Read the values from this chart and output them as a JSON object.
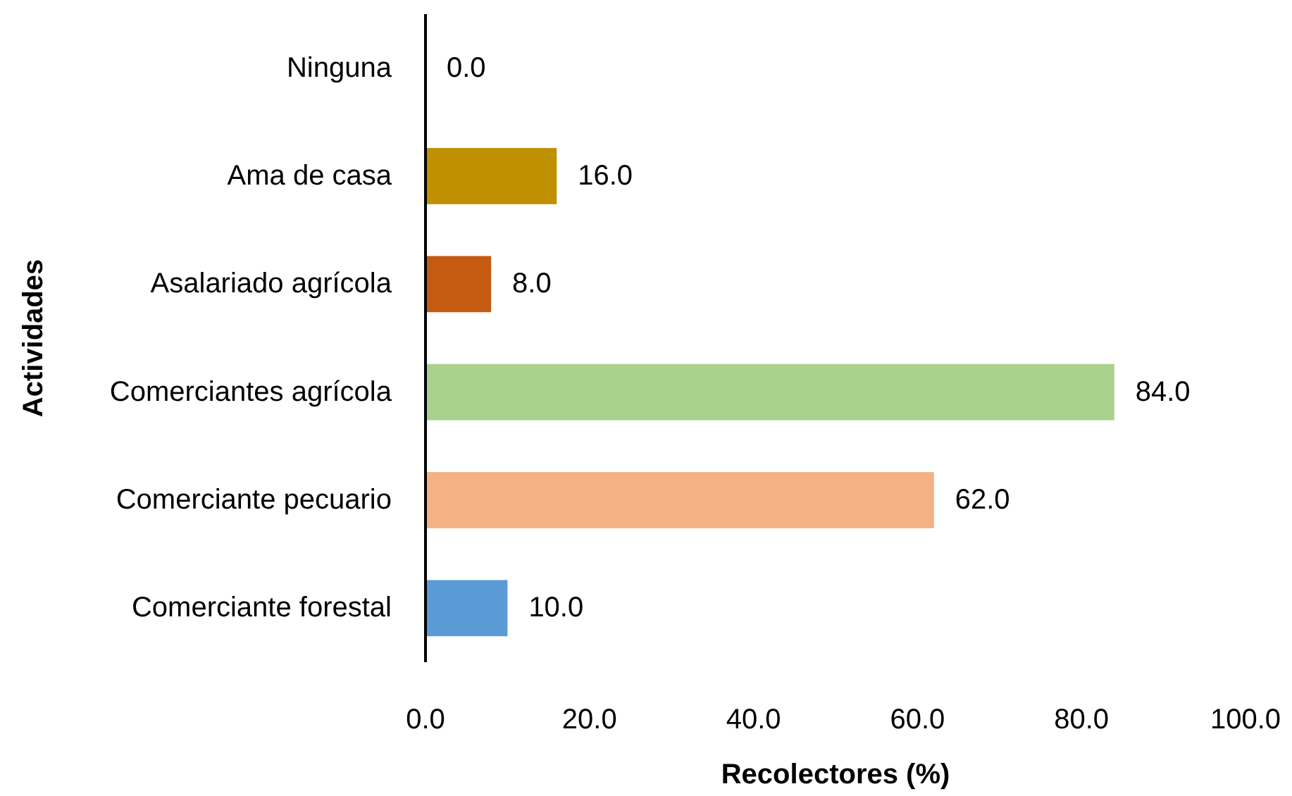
{
  "chart_data": {
    "type": "bar",
    "orientation": "horizontal",
    "xlabel": "Recolectores (%)",
    "ylabel": "Actividades",
    "categories": [
      "Ninguna",
      "Ama de casa",
      "Asalariado agrícola",
      "Comerciantes agrícola",
      "Comerciante pecuario",
      "Comerciante forestal"
    ],
    "values": [
      0,
      16,
      8,
      84,
      62,
      10
    ],
    "colors": [
      "#ffc000",
      "#bf9000",
      "#c55a11",
      "#a9d18e",
      "#f4b183",
      "#5b9bd5"
    ],
    "value_labels": [
      "0.0",
      "16.0",
      "8.0",
      "84.0",
      "62.0",
      "10.0"
    ],
    "xlim": [
      0,
      100
    ],
    "xticks": [
      {
        "value": 0,
        "label": "0.0"
      },
      {
        "value": 20,
        "label": "20.0"
      },
      {
        "value": 40,
        "label": "40.0"
      },
      {
        "value": 60,
        "label": "60.0"
      },
      {
        "value": 80,
        "label": "80.0"
      },
      {
        "value": 100,
        "label": "100.0"
      }
    ],
    "grid": false
  }
}
